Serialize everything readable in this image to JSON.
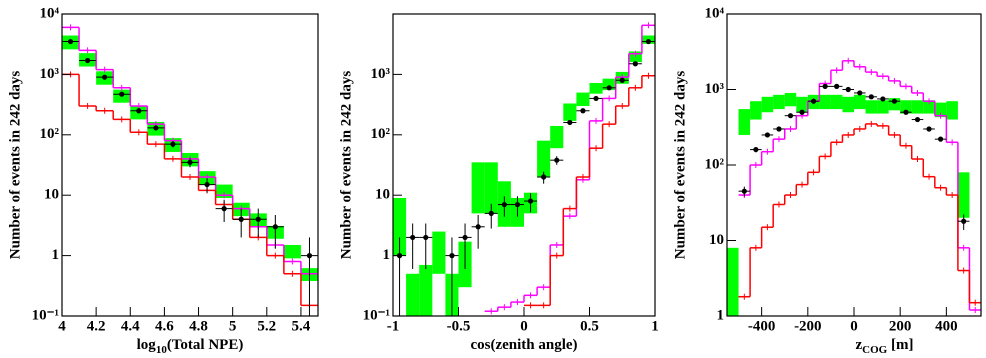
{
  "chart_data": [
    {
      "type": "histogram",
      "ylabel": "Number of events in 242 days",
      "xlabel": [
        "log",
        "10",
        "(Total NPE)"
      ],
      "bins": [
        4,
        4.1,
        4.2,
        4.3,
        4.4,
        4.5,
        4.6,
        4.7,
        4.8,
        4.9,
        5,
        5.1,
        5.2,
        5.3,
        5.4,
        5.5
      ],
      "xlim": [
        4,
        5.5
      ],
      "xticks": [
        4,
        4.2,
        4.4,
        4.6,
        4.8,
        5,
        5.2,
        5.4
      ],
      "ylog": true,
      "ylim": [
        0.1,
        10000
      ],
      "yticks": [
        {
          "value": 10000,
          "label": "10⁴"
        },
        {
          "value": 1000,
          "label": "10³"
        },
        {
          "value": 100,
          "label": "10²"
        },
        10,
        1,
        {
          "value": 0.1,
          "label": "10⁻¹"
        }
      ],
      "series": [
        {
          "style": "band",
          "color": "#00ff00",
          "values": [
            3500,
            1800,
            900,
            450,
            240,
            130,
            70,
            40,
            20,
            12,
            6,
            4,
            2.5,
            1.2,
            0.5
          ],
          "errors": [
            900,
            450,
            225,
            110,
            60,
            33,
            18,
            10,
            5,
            3,
            1.5,
            1,
            0.6,
            0.3,
            0.12
          ]
        },
        {
          "style": "step",
          "color": "#ff00ff",
          "values": [
            6000,
            2500,
            1200,
            600,
            300,
            150,
            80,
            40,
            20,
            10,
            6,
            3,
            1.5,
            0.8,
            0.5
          ]
        },
        {
          "style": "step",
          "color": "#ff0000",
          "values": [
            1000,
            300,
            250,
            180,
            110,
            70,
            40,
            20,
            12,
            7,
            4,
            2,
            1,
            0.5,
            0.15
          ]
        },
        {
          "style": "points",
          "color": "#000000",
          "values": [
            3500,
            1700,
            900,
            470,
            250,
            130,
            70,
            35,
            15,
            6,
            4,
            4,
            3,
            null,
            1
          ],
          "errors": [
            59,
            41,
            30,
            22,
            16,
            11,
            8,
            6,
            4,
            2.4,
            2,
            2,
            1.7,
            null,
            1
          ]
        }
      ]
    },
    {
      "type": "histogram",
      "ylabel": "Number of events in 242 days",
      "xlabel": [
        "cos(zenith angle)"
      ],
      "bins": [
        -1,
        -0.9,
        -0.8,
        -0.7,
        -0.6,
        -0.5,
        -0.4,
        -0.3,
        -0.2,
        -0.1,
        0,
        0.1,
        0.2,
        0.3,
        0.4,
        0.5,
        0.6,
        0.7,
        0.8,
        0.9,
        1
      ],
      "xlim": [
        -1,
        1
      ],
      "xticks": [
        -1,
        -0.5,
        0,
        0.5,
        1
      ],
      "ylog": true,
      "ylim": [
        0.1,
        10000
      ],
      "yticks": [
        {
          "value": 1000,
          "label": "10³"
        },
        {
          "value": 100,
          "label": "10²"
        },
        10,
        1,
        {
          "value": 0.1,
          "label": "10⁻¹"
        }
      ],
      "series": [
        {
          "style": "band",
          "color": "#00ff00",
          "values": [
            5,
            0.3,
            0.4,
            1.5,
            0.3,
            1,
            20,
            20,
            10,
            6,
            8,
            50,
            100,
            250,
            400,
            600,
            700,
            900,
            2000,
            3800
          ],
          "errors": [
            4,
            0.2,
            0.3,
            1,
            0.2,
            0.7,
            15,
            15,
            7,
            3,
            3,
            30,
            40,
            80,
            100,
            120,
            150,
            200,
            400,
            600
          ]
        },
        {
          "style": "step",
          "color": "#ff00ff",
          "values": [
            null,
            null,
            null,
            null,
            null,
            null,
            null,
            0.12,
            0.14,
            0.17,
            0.22,
            0.3,
            1.5,
            4.5,
            18,
            170,
            400,
            900,
            2200,
            6500
          ]
        },
        {
          "style": "step",
          "color": "#ff0000",
          "values": [
            null,
            null,
            null,
            null,
            null,
            null,
            null,
            null,
            null,
            null,
            0.15,
            0.15,
            1,
            6,
            20,
            60,
            150,
            300,
            600,
            950
          ]
        },
        {
          "style": "points",
          "color": "#000000",
          "values": [
            1,
            2,
            2,
            null,
            1,
            2,
            3,
            5,
            7,
            7,
            8,
            20,
            38,
            160,
            250,
            400,
            600,
            800,
            1500,
            3500
          ],
          "errors": [
            1,
            1.4,
            1.4,
            null,
            1,
            1.4,
            1.7,
            2.2,
            2.6,
            2.6,
            2.8,
            4.5,
            6.2,
            13,
            16,
            20,
            24,
            28,
            39,
            59
          ]
        }
      ]
    },
    {
      "type": "histogram",
      "ylabel": "Number of events in 242 days",
      "xlabel": [
        "z",
        "COG",
        " [m]"
      ],
      "bins": [
        -550,
        -500,
        -450,
        -400,
        -350,
        -300,
        -250,
        -200,
        -150,
        -100,
        -50,
        0,
        50,
        100,
        150,
        200,
        250,
        300,
        350,
        400,
        450,
        500,
        550
      ],
      "xlim": [
        -550,
        550
      ],
      "xticks": [
        -400,
        -200,
        0,
        200,
        400
      ],
      "ylog": true,
      "ylim": [
        1,
        10000
      ],
      "yticks": [
        {
          "value": 10000,
          "label": "10⁴"
        },
        {
          "value": 1000,
          "label": "10³"
        },
        {
          "value": 100,
          "label": "10²"
        },
        10,
        1
      ],
      "series": [
        {
          "style": "band",
          "color": "#00ff00",
          "values": [
            3,
            400,
            550,
            650,
            700,
            750,
            650,
            700,
            700,
            700,
            650,
            700,
            600,
            600,
            650,
            600,
            600,
            600,
            550,
            550,
            50,
            null
          ],
          "errors": [
            5,
            150,
            150,
            150,
            150,
            150,
            150,
            150,
            150,
            150,
            150,
            150,
            120,
            120,
            120,
            120,
            120,
            120,
            120,
            150,
            30,
            null
          ]
        },
        {
          "style": "step",
          "color": "#ff00ff",
          "values": [
            null,
            40,
            100,
            150,
            220,
            300,
            450,
            700,
            1200,
            1800,
            2400,
            2000,
            1700,
            1500,
            1300,
            1100,
            900,
            700,
            450,
            200,
            8,
            1.2
          ]
        },
        {
          "style": "step",
          "color": "#ff0000",
          "values": [
            null,
            1.8,
            8,
            15,
            30,
            40,
            55,
            80,
            130,
            200,
            250,
            300,
            350,
            330,
            250,
            180,
            120,
            70,
            50,
            40,
            4,
            1.5
          ]
        },
        {
          "style": "points",
          "color": "#000000",
          "values": [
            null,
            45,
            160,
            250,
            300,
            450,
            500,
            700,
            1100,
            1100,
            1000,
            900,
            800,
            750,
            700,
            500,
            400,
            300,
            220,
            null,
            18,
            null
          ],
          "errors": [
            null,
            6.7,
            12.6,
            15.8,
            17.3,
            21.2,
            22.4,
            26.5,
            33.2,
            33.2,
            31.6,
            30,
            28.3,
            27.4,
            26.5,
            22.4,
            20,
            17.3,
            14.8,
            null,
            4.2,
            null
          ]
        }
      ]
    }
  ]
}
